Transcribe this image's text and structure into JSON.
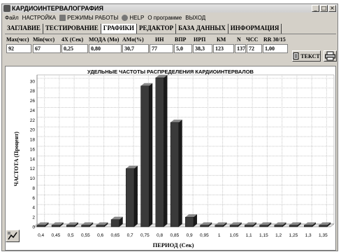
{
  "window": {
    "title": "КАРДИОИНТЕРВАЛОГРАФИЯ",
    "min": "_",
    "max": "□",
    "close": "×"
  },
  "menu": [
    {
      "label": "Файл",
      "icon": ""
    },
    {
      "label": "НАСТРОЙКА",
      "icon": ""
    },
    {
      "label": "РЕЖИМЫ РАБОТЫ",
      "icon": "modes-icon"
    },
    {
      "label": "HELP",
      "icon": "help-icon"
    },
    {
      "label": "О программе",
      "icon": ""
    },
    {
      "label": "ВЫХОД",
      "icon": ""
    }
  ],
  "tabs": [
    {
      "label": "ЗАГЛАВИЕ",
      "active": false
    },
    {
      "label": "ТЕСТИРОВАНИЕ",
      "active": false
    },
    {
      "label": "ГРАФИКИ",
      "active": true
    },
    {
      "label": "РЕДАКТОР",
      "active": false
    },
    {
      "label": "БАЗА ДАННЫХ",
      "active": false
    },
    {
      "label": "ИНФОРМАЦИЯ",
      "active": false
    }
  ],
  "params": [
    {
      "label": "Max(чсс)",
      "value": "92"
    },
    {
      "label": "Min(чсс)",
      "value": "67"
    },
    {
      "label": "4X (Сек)",
      "value": "0,25"
    },
    {
      "label": "МОДА (Мо)",
      "value": "0,80"
    },
    {
      "label": "AMo(%)",
      "value": "30,7"
    },
    {
      "label": "ИН",
      "value": "77"
    },
    {
      "label": "ВПР",
      "value": "5,0"
    },
    {
      "label": "ИРП",
      "value": "38,3"
    },
    {
      "label": "КМ",
      "value": "123"
    },
    {
      "label": "N",
      "value": "137"
    },
    {
      "label": "ЧСС",
      "value": "72"
    },
    {
      "label": "RR 30/15",
      "value": "1,00"
    }
  ],
  "buttons": {
    "text": "ТЕКСТ"
  },
  "chart_data": {
    "type": "bar",
    "title": "УДЕЛЬНЫЕ ЧАСТОТЫ РАСПРЕДЕЛЕНИЯ КАРДИОИНТЕРВАЛОВ",
    "xlabel": "ПЕРИОД (Сек)",
    "ylabel": "ЧАСТОТА (Процент)",
    "categories": [
      "0,4",
      "0,45",
      "0,5",
      "0,55",
      "0,6",
      "0,65",
      "0,7",
      "0,75",
      "0,8",
      "0,85",
      "0,9",
      "0,95",
      "1",
      "1,05",
      "1,1",
      "1,15",
      "1,2",
      "1,25",
      "1,3",
      "1,35"
    ],
    "values": [
      0,
      0,
      0,
      0,
      0,
      1.5,
      12,
      29,
      30.7,
      21.5,
      2,
      0,
      0,
      0,
      0,
      0,
      0,
      0,
      0,
      0
    ],
    "ylim": [
      0,
      30.7
    ],
    "yticks": [
      0,
      2,
      4,
      6,
      8,
      10,
      12,
      14,
      16,
      18,
      20,
      22,
      24,
      26,
      28,
      30
    ],
    "grid": true,
    "bar_color": "#3a3a3a"
  }
}
